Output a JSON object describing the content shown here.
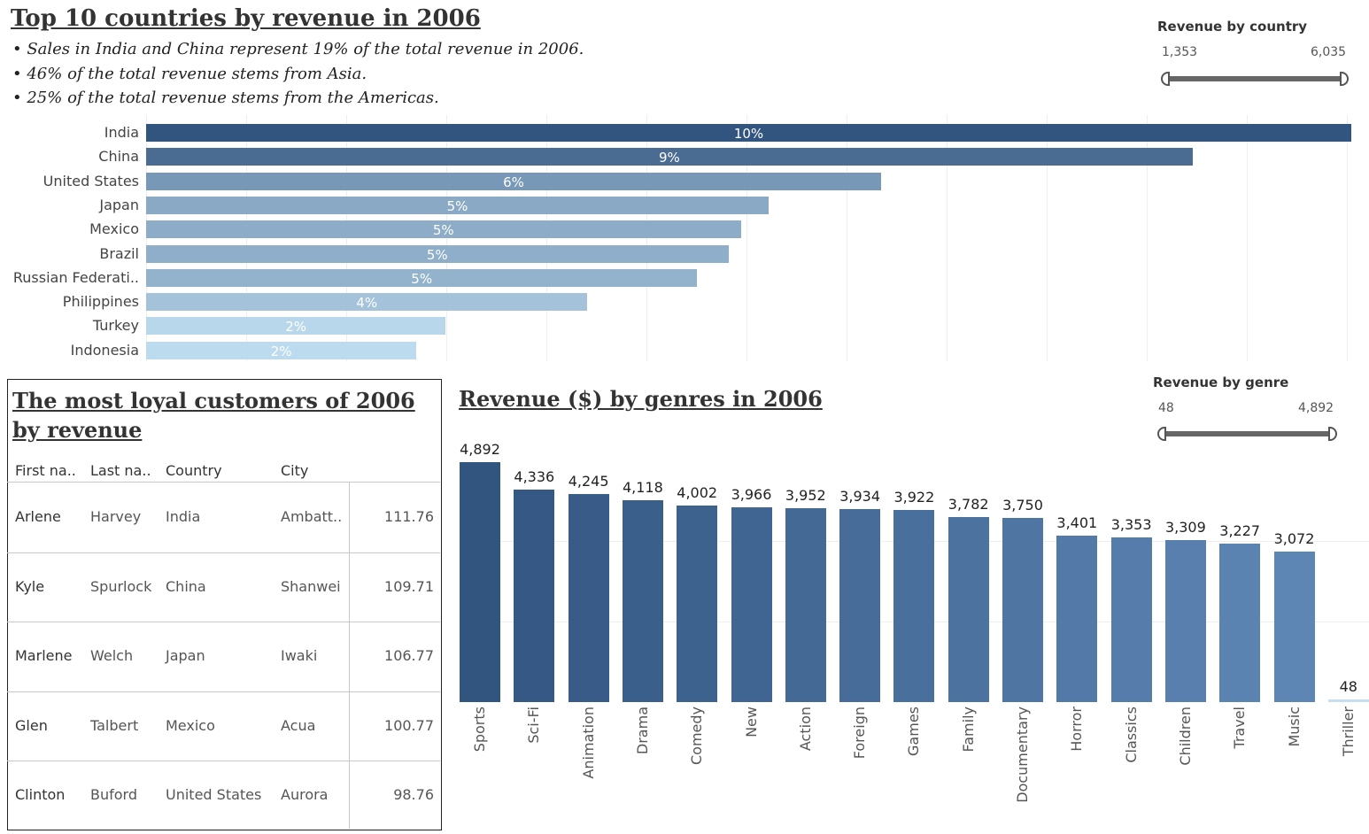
{
  "header": {
    "title": "Top 10 countries by revenue in 2006",
    "bullets": [
      "• Sales in India and China represent 19% of the total revenue in 2006.",
      "• 46% of the total revenue stems from Asia.",
      "• 25% of the total revenue stems from the Americas."
    ]
  },
  "filters": {
    "country": {
      "title": "Revenue by country",
      "min": "1,353",
      "max": "6,035"
    },
    "genre": {
      "title": "Revenue by genre",
      "min": "48",
      "max": "4,892"
    }
  },
  "table": {
    "title": "The most loyal customers of 2006 by revenue",
    "columns": [
      "First na..",
      "Last na..",
      "Country",
      "City"
    ],
    "rows": [
      [
        "Arlene",
        "Harvey",
        "India",
        "Ambatt..",
        "111.76"
      ],
      [
        "Kyle",
        "Spurlock",
        "China",
        "Shanwei",
        "109.71"
      ],
      [
        "Marlene",
        "Welch",
        "Japan",
        "Iwaki",
        "106.77"
      ],
      [
        "Glen",
        "Talbert",
        "Mexico",
        "Acua",
        "100.77"
      ],
      [
        "Clinton",
        "Buford",
        "United States",
        "Aurora",
        "98.76"
      ]
    ]
  },
  "colors": {
    "bar_dark": "#325580",
    "bar_light": "#bddbee",
    "genre_light": "#c6def0"
  },
  "chart_data": [
    {
      "type": "bar",
      "orientation": "horizontal",
      "title": "Top 10 countries by revenue in 2006",
      "categories": [
        "India",
        "China",
        "United States",
        "Japan",
        "Mexico",
        "Brazil",
        "Russian Federati..",
        "Philippines",
        "Turkey",
        "Indonesia"
      ],
      "values": [
        6035,
        5240,
        3680,
        3117,
        2978,
        2916,
        2760,
        2210,
        1500,
        1353
      ],
      "labels": [
        "10%",
        "9%",
        "6%",
        "5%",
        "5%",
        "5%",
        "5%",
        "4%",
        "2%",
        "2%"
      ],
      "xlim": [
        0,
        6035
      ],
      "grid": true
    },
    {
      "type": "bar",
      "orientation": "vertical",
      "title": "Revenue ($) by genres in 2006",
      "categories": [
        "Sports",
        "Sci-Fi",
        "Animation",
        "Drama",
        "Comedy",
        "New",
        "Action",
        "Foreign",
        "Games",
        "Family",
        "Documentary",
        "Horror",
        "Classics",
        "Children",
        "Travel",
        "Music",
        "Thriller"
      ],
      "values": [
        4892,
        4336,
        4245,
        4118,
        4002,
        3966,
        3952,
        3934,
        3922,
        3782,
        3750,
        3401,
        3353,
        3309,
        3227,
        3072,
        48
      ],
      "value_labels": [
        "4,892",
        "4,336",
        "4,245",
        "4,118",
        "4,002",
        "3,966",
        "3,952",
        "3,934",
        "3,922",
        "3,782",
        "3,750",
        "3,401",
        "3,353",
        "3,309",
        "3,227",
        "3,072",
        "48"
      ],
      "ylim": [
        0,
        4892
      ]
    }
  ]
}
